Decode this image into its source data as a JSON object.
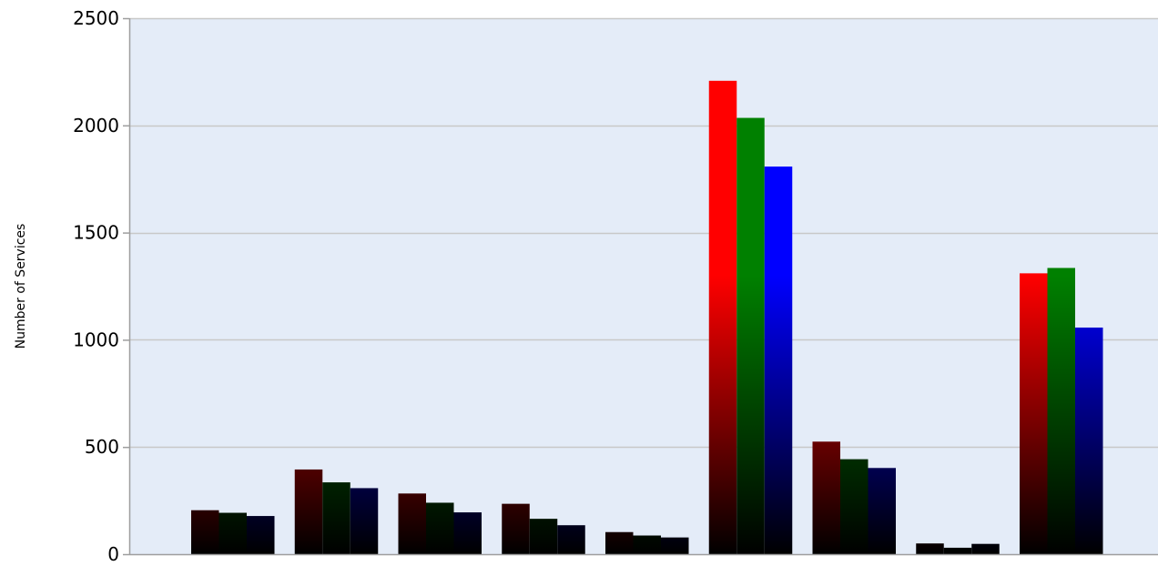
{
  "chart_data": {
    "type": "bar",
    "title": "",
    "xlabel": "",
    "ylabel": "Number of Services",
    "ylim": [
      0,
      2500
    ],
    "yticks": [
      0,
      500,
      1000,
      1500,
      2000,
      2500
    ],
    "grid": true,
    "legend": "none",
    "categories": [
      "",
      "",
      "",
      "",
      "",
      "",
      "",
      "",
      ""
    ],
    "series": [
      {
        "color": "#ff0000",
        "values": [
          205,
          395,
          283,
          235,
          103,
          2208,
          525,
          50,
          1310
        ]
      },
      {
        "color": "#008000",
        "values": [
          193,
          335,
          240,
          165,
          87,
          2035,
          443,
          30,
          1335
        ]
      },
      {
        "color": "#0000ff",
        "values": [
          178,
          308,
          195,
          135,
          78,
          1808,
          402,
          48,
          1057
        ]
      }
    ]
  },
  "colors": {
    "plot_background": "#e4ecf8",
    "gridline": "#c8c8c8",
    "axis": "#9e9e9e",
    "bar_base": "#000000"
  }
}
